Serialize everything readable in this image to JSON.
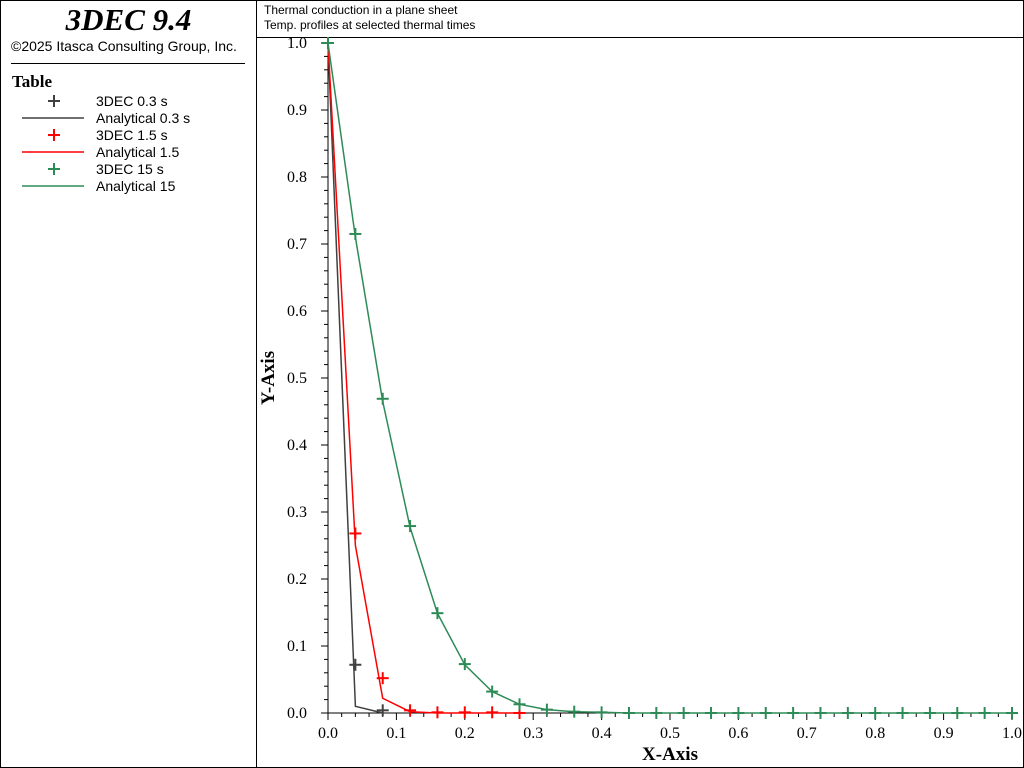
{
  "app": {
    "title": "3DEC 9.4",
    "copyright": "©2025 Itasca Consulting Group, Inc."
  },
  "legend": {
    "title": "Table",
    "entries": [
      {
        "label": "3DEC 0.3 s",
        "kind": "marker",
        "color": "#404040"
      },
      {
        "label": "Analytical 0.3 s",
        "kind": "line",
        "color": "#404040"
      },
      {
        "label": "3DEC 1.5 s",
        "kind": "marker",
        "color": "#ff0000"
      },
      {
        "label": "Analytical 1.5",
        "kind": "line",
        "color": "#ff0000"
      },
      {
        "label": "3DEC 15 s",
        "kind": "marker",
        "color": "#2e8b57"
      },
      {
        "label": "Analytical 15",
        "kind": "line",
        "color": "#2e8b57"
      }
    ]
  },
  "plot": {
    "title_line1": "Thermal conduction in a plane sheet",
    "title_line2": "Temp. profiles at selected thermal times"
  },
  "chart_data": {
    "type": "line",
    "xlabel": "X-Axis",
    "ylabel": "Y-Axis",
    "xlim": [
      0.0,
      1.0
    ],
    "ylim": [
      0.0,
      1.0
    ],
    "x_ticks": [
      "0.0",
      "0.1",
      "0.2",
      "0.3",
      "0.4",
      "0.5",
      "0.6",
      "0.7",
      "0.8",
      "0.9",
      "1.0"
    ],
    "y_ticks": [
      "0.0",
      "0.1",
      "0.2",
      "0.3",
      "0.4",
      "0.5",
      "0.6",
      "0.7",
      "0.8",
      "0.9",
      "1.0"
    ],
    "grid": false,
    "legend_placement": "left panel",
    "series": [
      {
        "name": "3DEC 0.3 s",
        "style": "marker",
        "color": "#404040",
        "x": [
          0.0,
          0.04,
          0.08
        ],
        "y": [
          1.0,
          0.072,
          0.004
        ]
      },
      {
        "name": "Analytical 0.3 s",
        "style": "line",
        "color": "#404040",
        "x": [
          0.0,
          0.04,
          0.08
        ],
        "y": [
          1.0,
          0.01,
          0.0
        ]
      },
      {
        "name": "3DEC 1.5 s",
        "style": "marker",
        "color": "#ff0000",
        "x": [
          0.0,
          0.04,
          0.08,
          0.12,
          0.16,
          0.2,
          0.24,
          0.28
        ],
        "y": [
          1.0,
          0.268,
          0.052,
          0.004,
          0.001,
          0.001,
          0.001,
          0.0
        ]
      },
      {
        "name": "Analytical 1.5",
        "style": "line",
        "color": "#ff0000",
        "x": [
          0.0,
          0.04,
          0.08,
          0.12,
          0.16,
          0.2,
          0.24,
          0.28
        ],
        "y": [
          1.0,
          0.25,
          0.022,
          0.002,
          0.0,
          0.0,
          0.0,
          0.0
        ]
      },
      {
        "name": "3DEC 15 s",
        "style": "marker",
        "color": "#2e8b57",
        "x": [
          0.0,
          0.04,
          0.08,
          0.12,
          0.16,
          0.2,
          0.24,
          0.28,
          0.32,
          0.36,
          0.4,
          0.44,
          0.48,
          0.52,
          0.56,
          0.6,
          0.64,
          0.68,
          0.72,
          0.76,
          0.8,
          0.84,
          0.88,
          0.92,
          0.96,
          1.0
        ],
        "y": [
          1.0,
          0.715,
          0.469,
          0.279,
          0.149,
          0.073,
          0.032,
          0.013,
          0.005,
          0.002,
          0.001,
          0.0,
          0.0,
          0.0,
          0.0,
          0.0,
          0.0,
          0.0,
          0.0,
          0.0,
          0.0,
          0.0,
          0.0,
          0.0,
          0.0,
          0.0
        ]
      },
      {
        "name": "Analytical 15",
        "style": "line",
        "color": "#2e8b57",
        "x": [
          0.0,
          0.04,
          0.08,
          0.12,
          0.16,
          0.2,
          0.24,
          0.28,
          0.32,
          0.36,
          0.4,
          0.44,
          0.48,
          0.52,
          0.56,
          0.6,
          0.64,
          0.68,
          0.72,
          0.76,
          0.8,
          0.84,
          0.88,
          0.92,
          0.96,
          1.0
        ],
        "y": [
          1.0,
          0.71,
          0.465,
          0.277,
          0.149,
          0.072,
          0.032,
          0.013,
          0.005,
          0.002,
          0.001,
          0.0,
          0.0,
          0.0,
          0.0,
          0.0,
          0.0,
          0.0,
          0.0,
          0.0,
          0.0,
          0.0,
          0.0,
          0.0,
          0.0,
          0.0
        ]
      }
    ]
  }
}
